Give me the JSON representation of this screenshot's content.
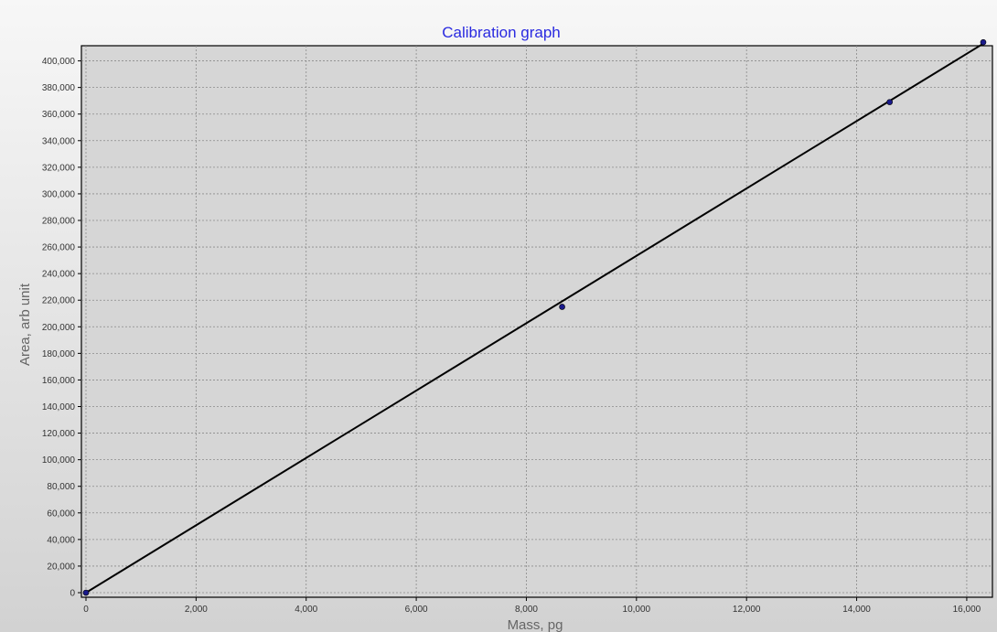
{
  "chart_data": {
    "type": "scatter",
    "title": "Calibration graph",
    "xlabel": "Mass, pg",
    "ylabel": "Area, arb unit",
    "xlim": [
      0,
      16400
    ],
    "ylim": [
      0,
      420000
    ],
    "x_ticks": [
      0,
      2000,
      4000,
      6000,
      8000,
      10000,
      12000,
      14000,
      16000
    ],
    "x_tick_labels": [
      "0",
      "2,000",
      "4,000",
      "6,000",
      "8,000",
      "10,000",
      "12,000",
      "14,000",
      "16,000"
    ],
    "y_ticks": [
      0,
      20000,
      40000,
      60000,
      80000,
      100000,
      120000,
      140000,
      160000,
      180000,
      200000,
      220000,
      240000,
      260000,
      280000,
      300000,
      320000,
      340000,
      360000,
      380000,
      400000
    ],
    "y_tick_labels": [
      "0",
      "20,000",
      "40,000",
      "60,000",
      "80,000",
      "100,000",
      "120,000",
      "140,000",
      "160,000",
      "180,000",
      "200,000",
      "220,000",
      "240,000",
      "260,000",
      "280,000",
      "300,000",
      "320,000",
      "340,000",
      "360,000",
      "380,000",
      "400,000"
    ],
    "grid": true,
    "series": [
      {
        "type": "scatter",
        "color": "#1a1a8c",
        "x": [
          0,
          8650,
          14600,
          16300
        ],
        "y": [
          0,
          215000,
          369000,
          414000
        ]
      },
      {
        "type": "line",
        "color": "#000000",
        "x": [
          0,
          16300
        ],
        "y": [
          0,
          413000
        ]
      }
    ]
  }
}
